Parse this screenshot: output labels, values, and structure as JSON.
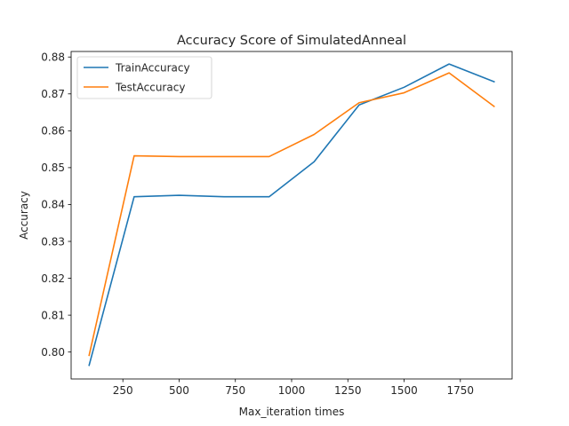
{
  "chart_data": {
    "type": "line",
    "title": "Accuracy Score of SimulatedAnneal",
    "xlabel": "Max_iteration times",
    "ylabel": "Accuracy",
    "x": [
      100,
      300,
      500,
      700,
      900,
      1100,
      1300,
      1500,
      1700,
      1900
    ],
    "xlim": [
      20,
      1980
    ],
    "ylim": [
      0.7927,
      0.8815
    ],
    "xticks": [
      250,
      500,
      750,
      1000,
      1250,
      1500,
      1750
    ],
    "xtick_labels": [
      "250",
      "500",
      "750",
      "1000",
      "1250",
      "1500",
      "1750"
    ],
    "yticks": [
      0.8,
      0.81,
      0.82,
      0.83,
      0.84,
      0.85,
      0.86,
      0.87,
      0.88
    ],
    "ytick_labels": [
      "0.80",
      "0.81",
      "0.82",
      "0.83",
      "0.84",
      "0.85",
      "0.86",
      "0.87",
      "0.88"
    ],
    "grid": false,
    "legend_position": "top-left",
    "series": [
      {
        "name": "TrainAccuracy",
        "color": "#1f77b4",
        "values": [
          0.7964,
          0.8421,
          0.8425,
          0.8421,
          0.8421,
          0.8516,
          0.867,
          0.8718,
          0.8781,
          0.8733
        ]
      },
      {
        "name": "TestAccuracy",
        "color": "#ff7f0e",
        "values": [
          0.7991,
          0.8532,
          0.853,
          0.853,
          0.853,
          0.859,
          0.8676,
          0.8703,
          0.8757,
          0.8666
        ]
      }
    ]
  }
}
